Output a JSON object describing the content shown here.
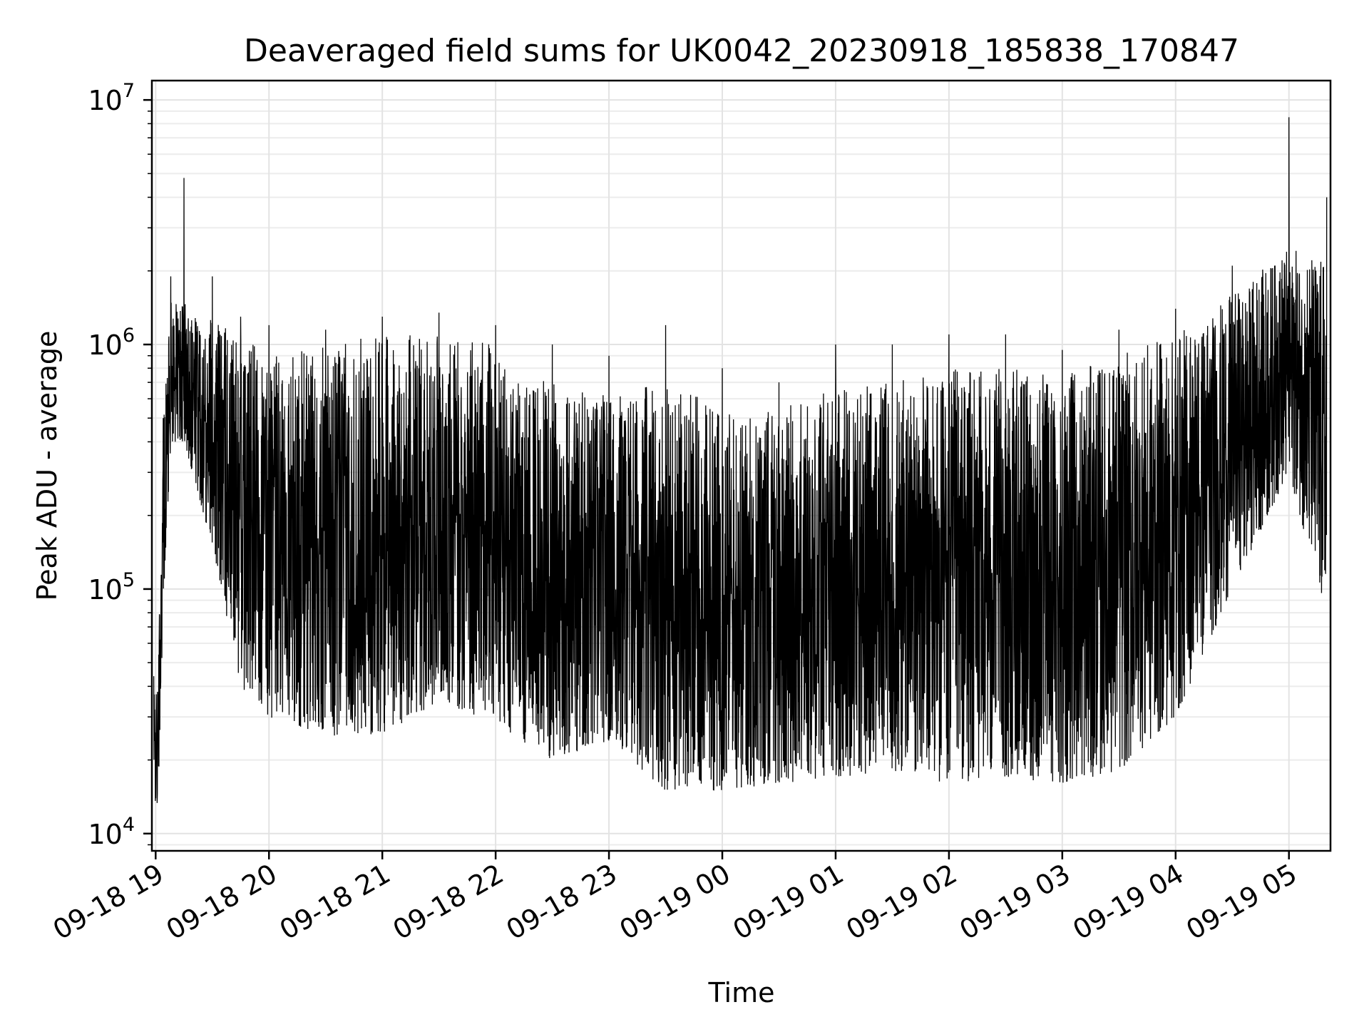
{
  "chart_data": {
    "type": "line",
    "title": "Deaveraged field sums for UK0042_20230918_185838_170847",
    "xlabel": "Time",
    "ylabel": "Peak ADU - average",
    "yscale": "log",
    "ylim": [
      8500,
      12000000
    ],
    "xlim": [
      "2023-09-18 18:58",
      "2023-09-19 05:22"
    ],
    "grid": true,
    "x_ticks": [
      {
        "value": "2023-09-18 19:00",
        "label": "09-18 19"
      },
      {
        "value": "2023-09-18 20:00",
        "label": "09-18 20"
      },
      {
        "value": "2023-09-18 21:00",
        "label": "09-18 21"
      },
      {
        "value": "2023-09-18 22:00",
        "label": "09-18 22"
      },
      {
        "value": "2023-09-18 23:00",
        "label": "09-18 23"
      },
      {
        "value": "2023-09-19 00:00",
        "label": "09-19 00"
      },
      {
        "value": "2023-09-19 01:00",
        "label": "09-19 01"
      },
      {
        "value": "2023-09-19 02:00",
        "label": "09-19 02"
      },
      {
        "value": "2023-09-19 03:00",
        "label": "09-19 03"
      },
      {
        "value": "2023-09-19 04:00",
        "label": "09-19 04"
      },
      {
        "value": "2023-09-19 05:00",
        "label": "09-19 05"
      }
    ],
    "y_ticks": [
      {
        "value": 10000,
        "base": "10",
        "exp": "4"
      },
      {
        "value": 100000,
        "base": "10",
        "exp": "5"
      },
      {
        "value": 1000000,
        "base": "10",
        "exp": "6"
      },
      {
        "value": 10000000,
        "base": "10",
        "exp": "7"
      }
    ],
    "series": [
      {
        "color": "#000000",
        "envelope": [
          {
            "x": "2023-09-18 18:59",
            "low": 14000,
            "high": 40000,
            "peak": 44000
          },
          {
            "x": "2023-09-18 19:01",
            "low": 11500,
            "high": 36000,
            "peak": 38000
          },
          {
            "x": "2023-09-18 19:04",
            "low": 80000,
            "high": 500000,
            "peak": 500000
          },
          {
            "x": "2023-09-18 19:08",
            "low": 400000,
            "high": 1500000,
            "peak": 1900000
          },
          {
            "x": "2023-09-18 19:15",
            "low": 400000,
            "high": 1500000,
            "peak": 4800000
          },
          {
            "x": "2023-09-18 19:30",
            "low": 150000,
            "high": 1300000,
            "peak": 1900000
          },
          {
            "x": "2023-09-18 19:45",
            "low": 40000,
            "high": 1100000,
            "peak": 1300000
          },
          {
            "x": "2023-09-18 20:00",
            "low": 30000,
            "high": 900000,
            "peak": 1200000
          },
          {
            "x": "2023-09-18 20:30",
            "low": 25000,
            "high": 1000000,
            "peak": 1150000
          },
          {
            "x": "2023-09-18 21:00",
            "low": 25000,
            "high": 1100000,
            "peak": 1300000
          },
          {
            "x": "2023-09-18 21:30",
            "low": 35000,
            "high": 1100000,
            "peak": 1350000
          },
          {
            "x": "2023-09-18 22:00",
            "low": 28000,
            "high": 1000000,
            "peak": 1200000
          },
          {
            "x": "2023-09-18 22:30",
            "low": 20000,
            "high": 700000,
            "peak": 1000000
          },
          {
            "x": "2023-09-18 23:00",
            "low": 24000,
            "high": 650000,
            "peak": 900000
          },
          {
            "x": "2023-09-18 23:30",
            "low": 15000,
            "high": 700000,
            "peak": 1200000
          },
          {
            "x": "2023-09-19 00:00",
            "low": 15000,
            "high": 550000,
            "peak": 800000
          },
          {
            "x": "2023-09-19 00:30",
            "low": 16000,
            "high": 550000,
            "peak": 700000
          },
          {
            "x": "2023-09-19 01:00",
            "low": 17000,
            "high": 700000,
            "peak": 1000000
          },
          {
            "x": "2023-09-19 01:30",
            "low": 18000,
            "high": 700000,
            "peak": 1000000
          },
          {
            "x": "2023-09-19 02:00",
            "low": 16000,
            "high": 800000,
            "peak": 1100000
          },
          {
            "x": "2023-09-19 02:30",
            "low": 17000,
            "high": 800000,
            "peak": 1100000
          },
          {
            "x": "2023-09-19 03:00",
            "low": 16000,
            "high": 750000,
            "peak": 950000
          },
          {
            "x": "2023-09-19 03:30",
            "low": 18000,
            "high": 900000,
            "peak": 1150000
          },
          {
            "x": "2023-09-19 04:00",
            "low": 30000,
            "high": 1100000,
            "peak": 1400000
          },
          {
            "x": "2023-09-19 04:30",
            "low": 100000,
            "high": 1600000,
            "peak": 2100000
          },
          {
            "x": "2023-09-19 05:00",
            "low": 300000,
            "high": 2500000,
            "peak": 8500000
          },
          {
            "x": "2023-09-19 05:20",
            "low": 75000,
            "high": 2200000,
            "peak": 4000000
          }
        ]
      }
    ]
  }
}
